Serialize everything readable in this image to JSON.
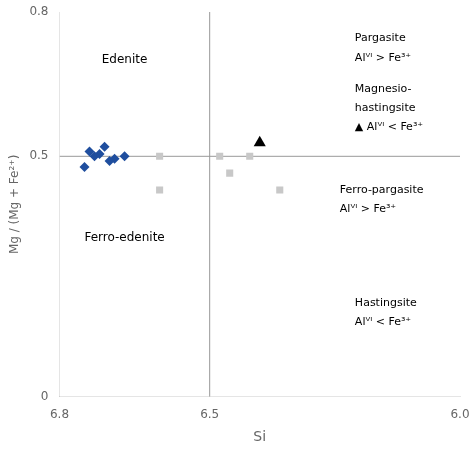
{
  "chart_data": {
    "type": "scatter",
    "x_label": "Si",
    "y_label": "Mg / (Mg + Fe²⁺)",
    "xlim": [
      6.8,
      6.0
    ],
    "ylim": [
      0,
      0.8
    ],
    "xticks": [
      6.8,
      6.5,
      {
        "value": 6.0,
        "label": "6.0"
      }
    ],
    "yticks": [
      0,
      0.5,
      0.8
    ],
    "grid": false,
    "series": [
      {
        "x": [
          6.72,
          6.71,
          6.69,
          6.74,
          6.73,
          6.7,
          6.67,
          6.75
        ],
        "values": [
          0.505,
          0.52,
          0.495,
          0.51,
          0.5,
          0.49,
          0.5,
          0.478
        ],
        "color": "#1f4e9e",
        "marker": "diamond"
      },
      {
        "x": [
          6.6,
          6.6,
          6.48,
          6.46,
          6.42,
          6.36
        ],
        "values": [
          0.5,
          0.43,
          0.5,
          0.465,
          0.5,
          0.43
        ],
        "color": "#c8c8c8",
        "marker": "square"
      },
      {
        "x": [
          6.4
        ],
        "values": [
          0.528
        ],
        "color": "#000000",
        "marker": "triangle"
      }
    ],
    "reference_lines": [
      {
        "axis": "y",
        "value": 0.5,
        "color": "#999999"
      },
      {
        "axis": "x",
        "value": 6.5,
        "color": "#999999"
      }
    ],
    "annotations": [
      {
        "text": "Edenite",
        "x": 6.67,
        "y": 0.7,
        "align": "center"
      },
      {
        "text": "Ferro-edenite",
        "x": 6.67,
        "y": 0.33,
        "align": "center"
      },
      {
        "text": "Pargasite",
        "x": 6.21,
        "y": 0.745,
        "align": "left"
      },
      {
        "text": "Alⱽᴵ > Fe³⁺",
        "x": 6.21,
        "y": 0.705,
        "align": "left"
      },
      {
        "text": "Magnesio-",
        "x": 6.21,
        "y": 0.64,
        "align": "left"
      },
      {
        "text": "hastingsite",
        "x": 6.21,
        "y": 0.6,
        "align": "left"
      },
      {
        "text": "▲ Alⱽᴵ < Fe³⁺",
        "x": 6.21,
        "y": 0.56,
        "align": "left"
      },
      {
        "text": "Ferro-pargasite",
        "x": 6.24,
        "y": 0.43,
        "align": "left"
      },
      {
        "text": "Alⱽᴵ > Fe³⁺",
        "x": 6.24,
        "y": 0.39,
        "align": "left"
      },
      {
        "text": "Hastingsite",
        "x": 6.21,
        "y": 0.195,
        "align": "left"
      },
      {
        "text": "Alⱽᴵ < Fe³⁺",
        "x": 6.21,
        "y": 0.155,
        "align": "left"
      }
    ]
  }
}
